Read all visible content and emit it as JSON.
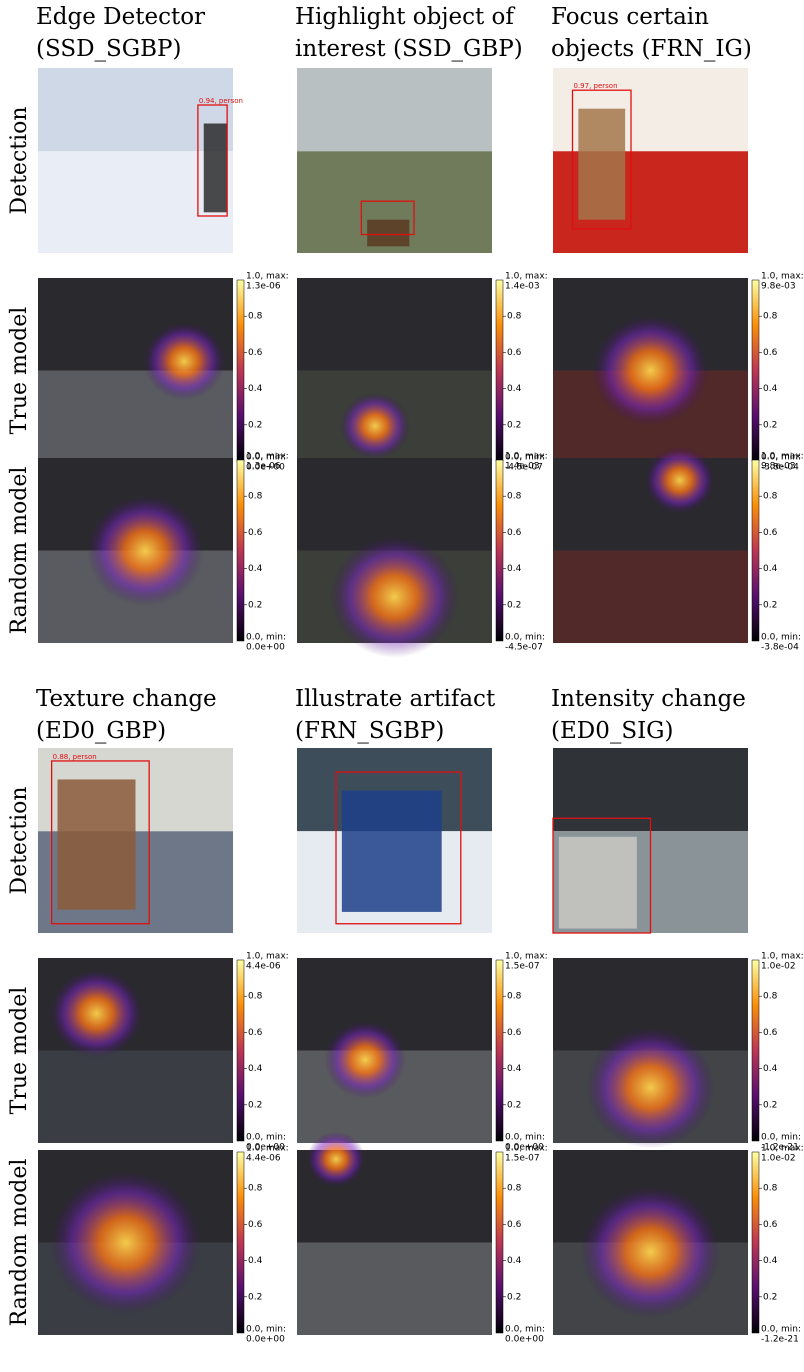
{
  "row_labels": [
    "Detection",
    "True model",
    "Random model"
  ],
  "colorbar": {
    "max_label": "1.0, max:",
    "min_label": "0.0, min:",
    "ticks": [
      "0.8",
      "0.6",
      "0.4",
      "0.2"
    ]
  },
  "panels": [
    {
      "columns": [
        {
          "title": [
            "Edge Detector",
            "(SSD_SGBP)"
          ],
          "detection_label": "0.94, person",
          "max": "1.3e-06",
          "min": "0.0e+00"
        },
        {
          "title": [
            "Highlight object of",
            "interest (SSD_GBP)"
          ],
          "max": "1.4e-03",
          "min": "-4.5e-07"
        },
        {
          "title": [
            "Focus certain",
            "objects (FRN_IG)"
          ],
          "detection_label": "0.97, person",
          "max": "9.8e-03",
          "min": "-3.8e-04"
        }
      ]
    },
    {
      "columns": [
        {
          "title": [
            "Texture change",
            "(ED0_GBP)"
          ],
          "detection_label": "0.88, person",
          "max": "4.4e-06",
          "min": "0.0e+00"
        },
        {
          "title": [
            "Illustrate artifact",
            "(FRN_SGBP)"
          ],
          "max": "1.5e-07",
          "min": "0.0e+00"
        },
        {
          "title": [
            "Intensity change",
            "(ED0_SIG)"
          ],
          "max": "1.0e-02",
          "min": "-1.2e-21"
        }
      ]
    }
  ]
}
